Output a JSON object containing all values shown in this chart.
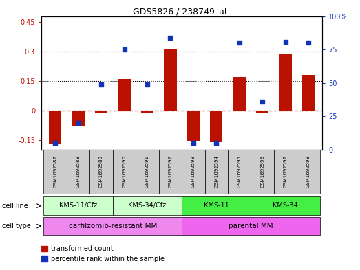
{
  "title": "GDS5826 / 238749_at",
  "samples": [
    "GSM1692587",
    "GSM1692588",
    "GSM1692589",
    "GSM1692590",
    "GSM1692591",
    "GSM1692592",
    "GSM1692593",
    "GSM1692594",
    "GSM1692595",
    "GSM1692596",
    "GSM1692597",
    "GSM1692598"
  ],
  "transformed_count": [
    -0.17,
    -0.08,
    -0.01,
    0.16,
    -0.01,
    0.31,
    -0.155,
    -0.16,
    0.17,
    -0.01,
    0.29,
    0.18
  ],
  "percentile_rank_pct": [
    5,
    20,
    49,
    75,
    49,
    84,
    5,
    5,
    80,
    36,
    81,
    80
  ],
  "ylim_left": [
    -0.2,
    0.48
  ],
  "ylim_right": [
    0,
    100
  ],
  "yticks_left": [
    -0.15,
    0.0,
    0.15,
    0.3,
    0.45
  ],
  "yticks_right": [
    0,
    25,
    50,
    75,
    100
  ],
  "hlines": [
    0.15,
    0.3
  ],
  "bar_color": "#BB1100",
  "dot_color": "#1133BB",
  "zero_line_color": "#BB1100",
  "cell_line_groups": [
    {
      "label": "KMS-11/Cfz",
      "start": 0,
      "end": 2,
      "color": "#CCFFCC"
    },
    {
      "label": "KMS-34/Cfz",
      "start": 3,
      "end": 5,
      "color": "#CCFFCC"
    },
    {
      "label": "KMS-11",
      "start": 6,
      "end": 8,
      "color": "#44EE44"
    },
    {
      "label": "KMS-34",
      "start": 9,
      "end": 11,
      "color": "#44EE44"
    }
  ],
  "cell_type_groups": [
    {
      "label": "carfilzomib-resistant MM",
      "start": 0,
      "end": 5,
      "color": "#EE88EE"
    },
    {
      "label": "parental MM",
      "start": 6,
      "end": 11,
      "color": "#EE66EE"
    }
  ],
  "cell_line_label": "cell line",
  "cell_type_label": "cell type",
  "legend_items": [
    {
      "color": "#BB1100",
      "label": "transformed count"
    },
    {
      "color": "#1133BB",
      "label": "percentile rank within the sample"
    }
  ],
  "sample_box_color": "#CCCCCC",
  "title_fontsize": 9
}
